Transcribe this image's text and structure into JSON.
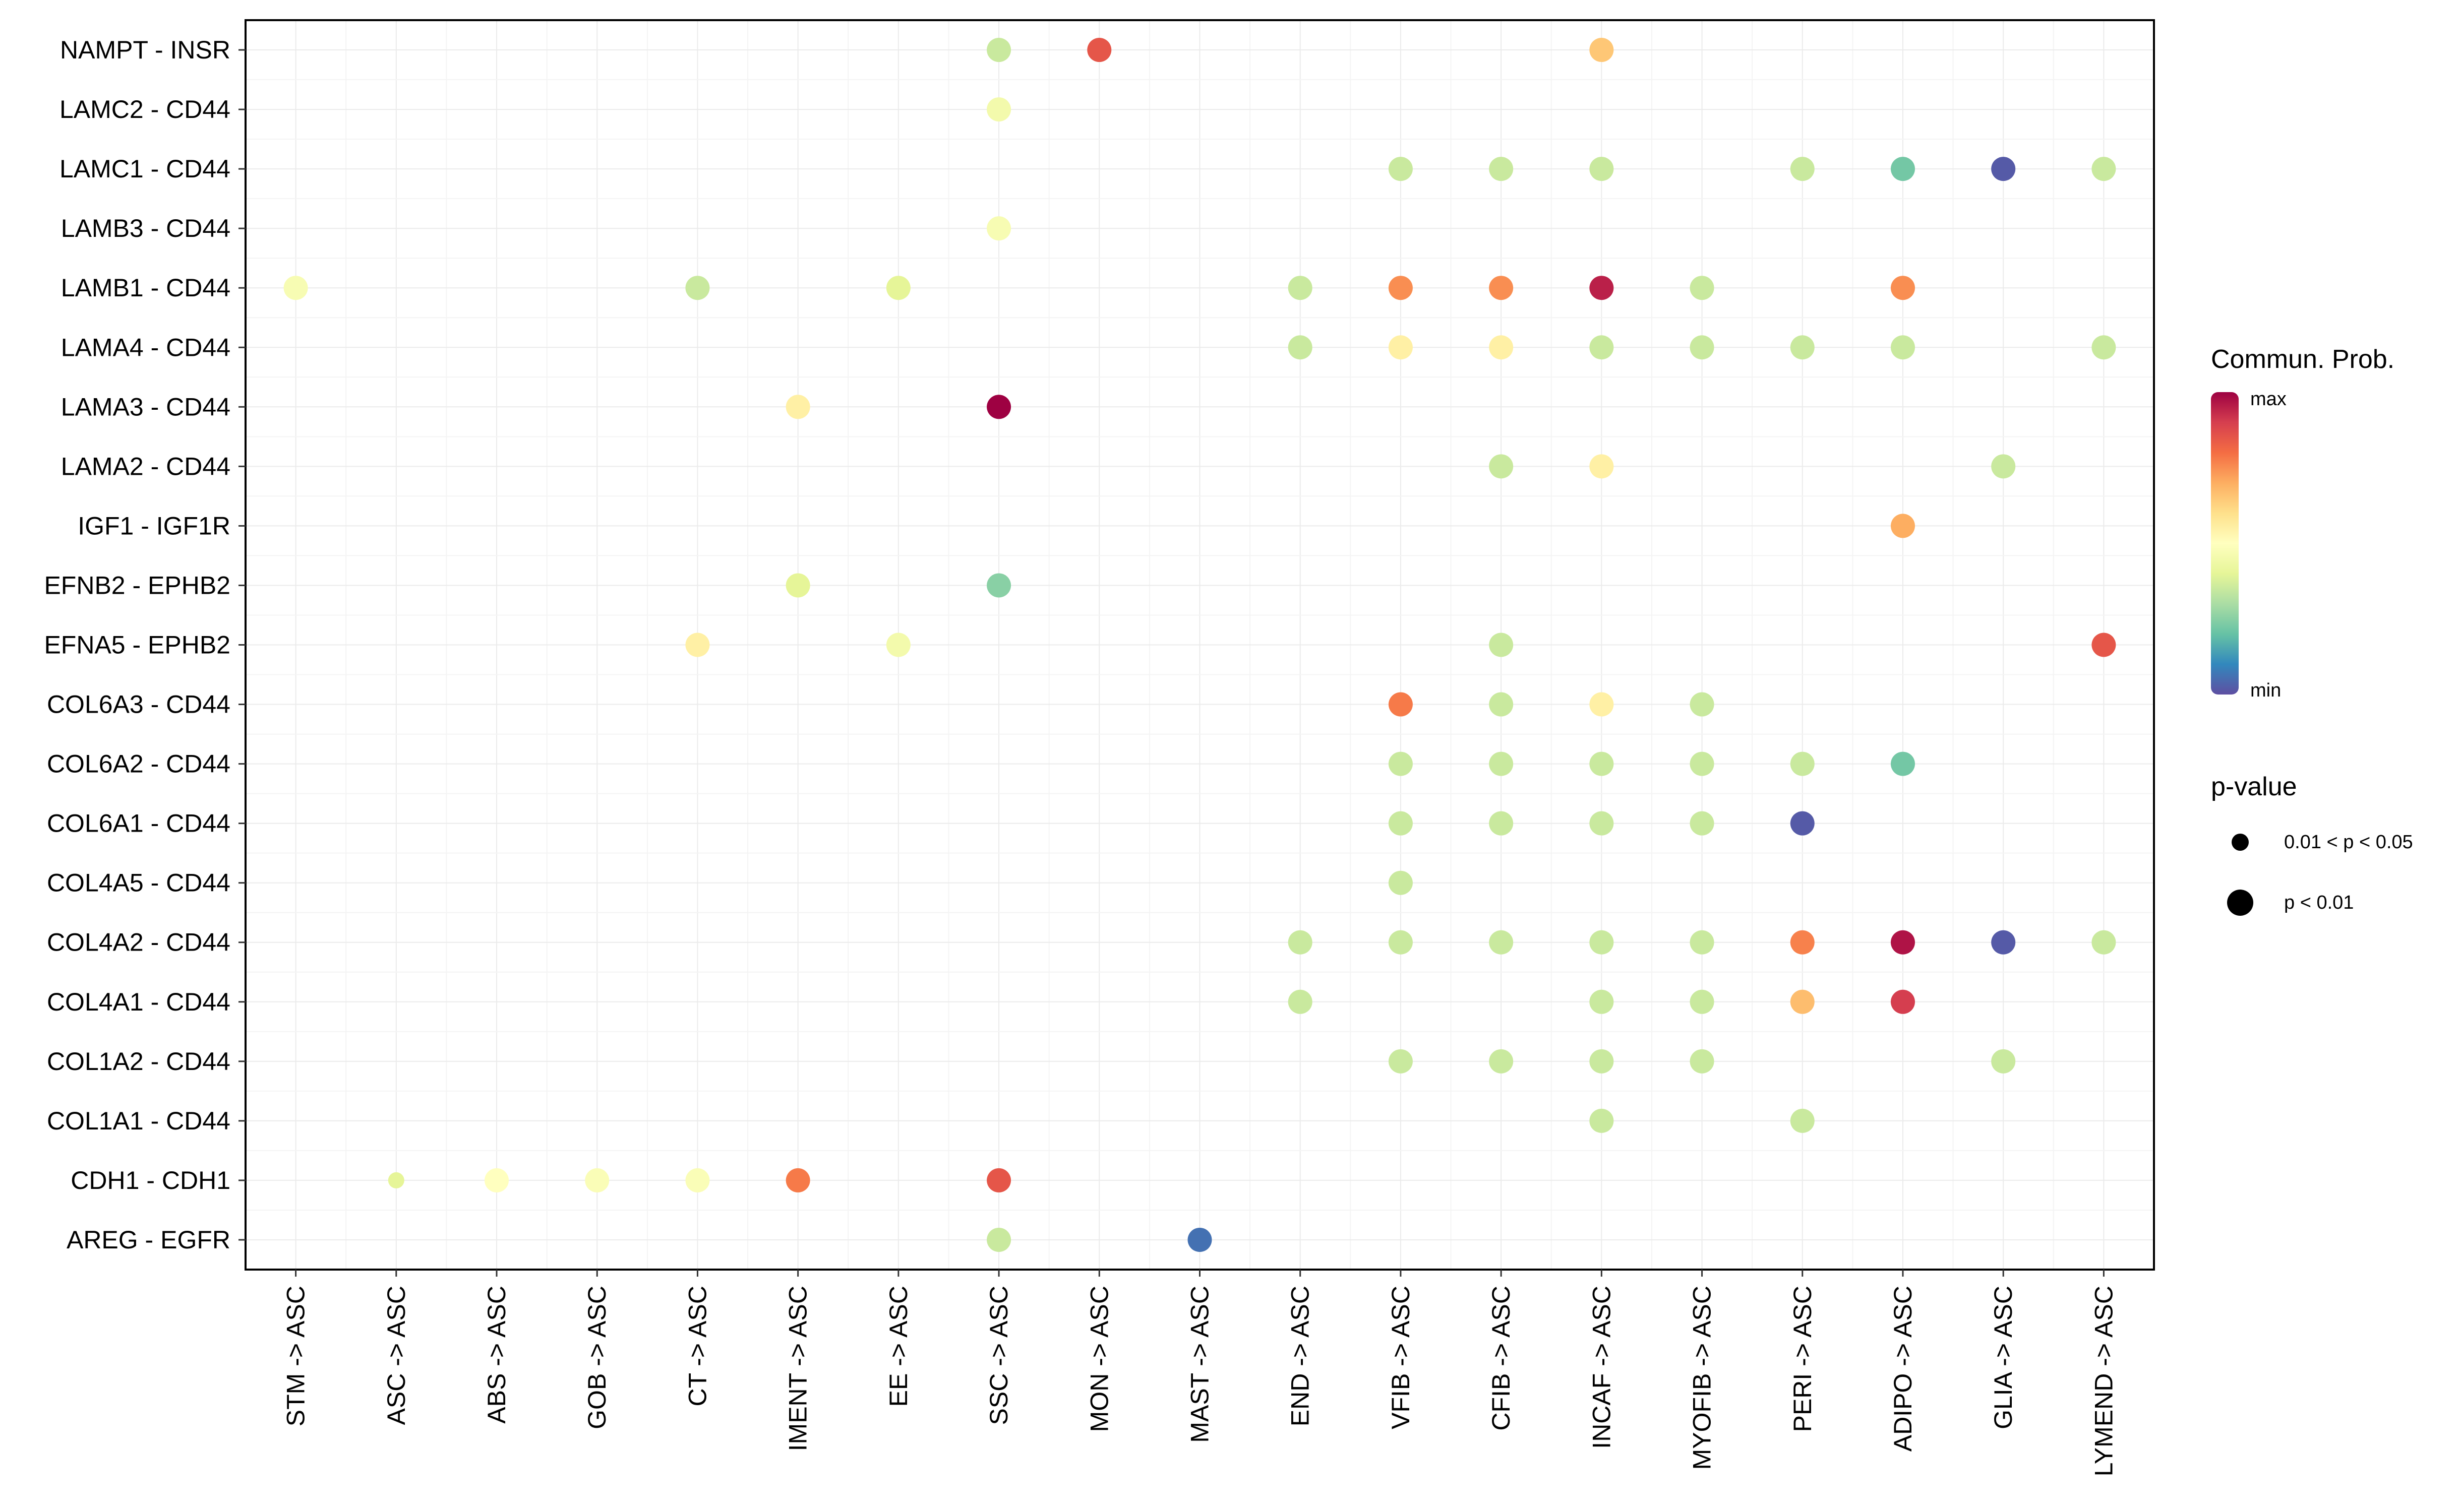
{
  "chart_data": {
    "type": "dot-plot",
    "title": "",
    "xlabel": "",
    "ylabel": "",
    "grid": true,
    "x_categories": [
      "STM -> ASC",
      "ASC -> ASC",
      "ABS -> ASC",
      "GOB -> ASC",
      "CT -> ASC",
      "IMENT -> ASC",
      "EE -> ASC",
      "SSC -> ASC",
      "MON -> ASC",
      "MAST -> ASC",
      "END -> ASC",
      "VFIB -> ASC",
      "CFIB -> ASC",
      "INCAF -> ASC",
      "MYOFIB -> ASC",
      "PERI -> ASC",
      "ADIPO -> ASC",
      "GLIA -> ASC",
      "LYMEND -> ASC"
    ],
    "y_categories": [
      "AREG - EGFR",
      "CDH1 - CDH1",
      "COL1A1 - CD44",
      "COL1A2 - CD44",
      "COL4A1 - CD44",
      "COL4A2 - CD44",
      "COL4A5 - CD44",
      "COL6A1 - CD44",
      "COL6A2 - CD44",
      "COL6A3 - CD44",
      "EFNA5 - EPHB2",
      "EFNB2 - EPHB2",
      "IGF1 - IGF1R",
      "LAMA2 - CD44",
      "LAMA3 - CD44",
      "LAMA4 - CD44",
      "LAMB1 - CD44",
      "LAMB3 - CD44",
      "LAMC1 - CD44",
      "LAMC2 - CD44",
      "NAMPT - INSR"
    ],
    "points": [
      {
        "x": "SSC -> ASC",
        "y": "NAMPT - INSR",
        "prob": 0.35,
        "p_class": "p < 0.01"
      },
      {
        "x": "MON -> ASC",
        "y": "NAMPT - INSR",
        "prob": 0.85,
        "p_class": "p < 0.01"
      },
      {
        "x": "INCAF -> ASC",
        "y": "NAMPT - INSR",
        "prob": 0.65,
        "p_class": "p < 0.01"
      },
      {
        "x": "SSC -> ASC",
        "y": "LAMC2 - CD44",
        "prob": 0.45,
        "p_class": "p < 0.01"
      },
      {
        "x": "VFIB -> ASC",
        "y": "LAMC1 - CD44",
        "prob": 0.35,
        "p_class": "p < 0.01"
      },
      {
        "x": "CFIB -> ASC",
        "y": "LAMC1 - CD44",
        "prob": 0.35,
        "p_class": "p < 0.01"
      },
      {
        "x": "INCAF -> ASC",
        "y": "LAMC1 - CD44",
        "prob": 0.35,
        "p_class": "p < 0.01"
      },
      {
        "x": "PERI -> ASC",
        "y": "LAMC1 - CD44",
        "prob": 0.35,
        "p_class": "p < 0.01"
      },
      {
        "x": "ADIPO -> ASC",
        "y": "LAMC1 - CD44",
        "prob": 0.22,
        "p_class": "p < 0.01"
      },
      {
        "x": "GLIA -> ASC",
        "y": "LAMC1 - CD44",
        "prob": 0.02,
        "p_class": "p < 0.01"
      },
      {
        "x": "LYMEND -> ASC",
        "y": "LAMC1 - CD44",
        "prob": 0.35,
        "p_class": "p < 0.01"
      },
      {
        "x": "SSC -> ASC",
        "y": "LAMB3 - CD44",
        "prob": 0.47,
        "p_class": "p < 0.01"
      },
      {
        "x": "STM -> ASC",
        "y": "LAMB1 - CD44",
        "prob": 0.47,
        "p_class": "p < 0.01"
      },
      {
        "x": "CT -> ASC",
        "y": "LAMB1 - CD44",
        "prob": 0.35,
        "p_class": "p < 0.01"
      },
      {
        "x": "EE -> ASC",
        "y": "LAMB1 - CD44",
        "prob": 0.4,
        "p_class": "p < 0.01"
      },
      {
        "x": "END -> ASC",
        "y": "LAMB1 - CD44",
        "prob": 0.35,
        "p_class": "p < 0.01"
      },
      {
        "x": "VFIB -> ASC",
        "y": "LAMB1 - CD44",
        "prob": 0.75,
        "p_class": "p < 0.01"
      },
      {
        "x": "CFIB -> ASC",
        "y": "LAMB1 - CD44",
        "prob": 0.75,
        "p_class": "p < 0.01"
      },
      {
        "x": "INCAF -> ASC",
        "y": "LAMB1 - CD44",
        "prob": 0.95,
        "p_class": "p < 0.01"
      },
      {
        "x": "MYOFIB -> ASC",
        "y": "LAMB1 - CD44",
        "prob": 0.35,
        "p_class": "p < 0.01"
      },
      {
        "x": "ADIPO -> ASC",
        "y": "LAMB1 - CD44",
        "prob": 0.75,
        "p_class": "p < 0.01"
      },
      {
        "x": "END -> ASC",
        "y": "LAMA4 - CD44",
        "prob": 0.35,
        "p_class": "p < 0.01"
      },
      {
        "x": "VFIB -> ASC",
        "y": "LAMA4 - CD44",
        "prob": 0.55,
        "p_class": "p < 0.01"
      },
      {
        "x": "CFIB -> ASC",
        "y": "LAMA4 - CD44",
        "prob": 0.55,
        "p_class": "p < 0.01"
      },
      {
        "x": "INCAF -> ASC",
        "y": "LAMA4 - CD44",
        "prob": 0.35,
        "p_class": "p < 0.01"
      },
      {
        "x": "MYOFIB -> ASC",
        "y": "LAMA4 - CD44",
        "prob": 0.35,
        "p_class": "p < 0.01"
      },
      {
        "x": "PERI -> ASC",
        "y": "LAMA4 - CD44",
        "prob": 0.35,
        "p_class": "p < 0.01"
      },
      {
        "x": "ADIPO -> ASC",
        "y": "LAMA4 - CD44",
        "prob": 0.35,
        "p_class": "p < 0.01"
      },
      {
        "x": "LYMEND -> ASC",
        "y": "LAMA4 - CD44",
        "prob": 0.35,
        "p_class": "p < 0.01"
      },
      {
        "x": "IMENT -> ASC",
        "y": "LAMA3 - CD44",
        "prob": 0.55,
        "p_class": "p < 0.01"
      },
      {
        "x": "SSC -> ASC",
        "y": "LAMA3 - CD44",
        "prob": 1.0,
        "p_class": "p < 0.01"
      },
      {
        "x": "CFIB -> ASC",
        "y": "LAMA2 - CD44",
        "prob": 0.35,
        "p_class": "p < 0.01"
      },
      {
        "x": "INCAF -> ASC",
        "y": "LAMA2 - CD44",
        "prob": 0.55,
        "p_class": "p < 0.01"
      },
      {
        "x": "GLIA -> ASC",
        "y": "LAMA2 - CD44",
        "prob": 0.35,
        "p_class": "p < 0.01"
      },
      {
        "x": "ADIPO -> ASC",
        "y": "IGF1 - IGF1R",
        "prob": 0.7,
        "p_class": "p < 0.01"
      },
      {
        "x": "IMENT -> ASC",
        "y": "EFNB2 - EPHB2",
        "prob": 0.4,
        "p_class": "p < 0.01"
      },
      {
        "x": "SSC -> ASC",
        "y": "EFNB2 - EPHB2",
        "prob": 0.25,
        "p_class": "p < 0.01"
      },
      {
        "x": "CT -> ASC",
        "y": "EFNA5 - EPHB2",
        "prob": 0.55,
        "p_class": "p < 0.01"
      },
      {
        "x": "EE -> ASC",
        "y": "EFNA5 - EPHB2",
        "prob": 0.45,
        "p_class": "p < 0.01"
      },
      {
        "x": "CFIB -> ASC",
        "y": "EFNA5 - EPHB2",
        "prob": 0.35,
        "p_class": "p < 0.01"
      },
      {
        "x": "LYMEND -> ASC",
        "y": "EFNA5 - EPHB2",
        "prob": 0.85,
        "p_class": "p < 0.01"
      },
      {
        "x": "VFIB -> ASC",
        "y": "COL6A3 - CD44",
        "prob": 0.78,
        "p_class": "p < 0.01"
      },
      {
        "x": "CFIB -> ASC",
        "y": "COL6A3 - CD44",
        "prob": 0.35,
        "p_class": "p < 0.01"
      },
      {
        "x": "INCAF -> ASC",
        "y": "COL6A3 - CD44",
        "prob": 0.55,
        "p_class": "p < 0.01"
      },
      {
        "x": "MYOFIB -> ASC",
        "y": "COL6A3 - CD44",
        "prob": 0.35,
        "p_class": "p < 0.01"
      },
      {
        "x": "VFIB -> ASC",
        "y": "COL6A2 - CD44",
        "prob": 0.35,
        "p_class": "p < 0.01"
      },
      {
        "x": "CFIB -> ASC",
        "y": "COL6A2 - CD44",
        "prob": 0.35,
        "p_class": "p < 0.01"
      },
      {
        "x": "INCAF -> ASC",
        "y": "COL6A2 - CD44",
        "prob": 0.35,
        "p_class": "p < 0.01"
      },
      {
        "x": "MYOFIB -> ASC",
        "y": "COL6A2 - CD44",
        "prob": 0.35,
        "p_class": "p < 0.01"
      },
      {
        "x": "PERI -> ASC",
        "y": "COL6A2 - CD44",
        "prob": 0.35,
        "p_class": "p < 0.01"
      },
      {
        "x": "ADIPO -> ASC",
        "y": "COL6A2 - CD44",
        "prob": 0.22,
        "p_class": "p < 0.01"
      },
      {
        "x": "VFIB -> ASC",
        "y": "COL6A1 - CD44",
        "prob": 0.35,
        "p_class": "p < 0.01"
      },
      {
        "x": "CFIB -> ASC",
        "y": "COL6A1 - CD44",
        "prob": 0.35,
        "p_class": "p < 0.01"
      },
      {
        "x": "INCAF -> ASC",
        "y": "COL6A1 - CD44",
        "prob": 0.35,
        "p_class": "p < 0.01"
      },
      {
        "x": "MYOFIB -> ASC",
        "y": "COL6A1 - CD44",
        "prob": 0.35,
        "p_class": "p < 0.01"
      },
      {
        "x": "PERI -> ASC",
        "y": "COL6A1 - CD44",
        "prob": 0.02,
        "p_class": "p < 0.01"
      },
      {
        "x": "VFIB -> ASC",
        "y": "COL4A5 - CD44",
        "prob": 0.35,
        "p_class": "p < 0.01"
      },
      {
        "x": "END -> ASC",
        "y": "COL4A2 - CD44",
        "prob": 0.35,
        "p_class": "p < 0.01"
      },
      {
        "x": "VFIB -> ASC",
        "y": "COL4A2 - CD44",
        "prob": 0.35,
        "p_class": "p < 0.01"
      },
      {
        "x": "CFIB -> ASC",
        "y": "COL4A2 - CD44",
        "prob": 0.35,
        "p_class": "p < 0.01"
      },
      {
        "x": "INCAF -> ASC",
        "y": "COL4A2 - CD44",
        "prob": 0.35,
        "p_class": "p < 0.01"
      },
      {
        "x": "MYOFIB -> ASC",
        "y": "COL4A2 - CD44",
        "prob": 0.35,
        "p_class": "p < 0.01"
      },
      {
        "x": "PERI -> ASC",
        "y": "COL4A2 - CD44",
        "prob": 0.77,
        "p_class": "p < 0.01"
      },
      {
        "x": "ADIPO -> ASC",
        "y": "COL4A2 - CD44",
        "prob": 0.97,
        "p_class": "p < 0.01"
      },
      {
        "x": "GLIA -> ASC",
        "y": "COL4A2 - CD44",
        "prob": 0.02,
        "p_class": "p < 0.01"
      },
      {
        "x": "LYMEND -> ASC",
        "y": "COL4A2 - CD44",
        "prob": 0.35,
        "p_class": "p < 0.01"
      },
      {
        "x": "END -> ASC",
        "y": "COL4A1 - CD44",
        "prob": 0.35,
        "p_class": "p < 0.01"
      },
      {
        "x": "INCAF -> ASC",
        "y": "COL4A1 - CD44",
        "prob": 0.35,
        "p_class": "p < 0.01"
      },
      {
        "x": "MYOFIB -> ASC",
        "y": "COL4A1 - CD44",
        "prob": 0.35,
        "p_class": "p < 0.01"
      },
      {
        "x": "PERI -> ASC",
        "y": "COL4A1 - CD44",
        "prob": 0.67,
        "p_class": "p < 0.01"
      },
      {
        "x": "ADIPO -> ASC",
        "y": "COL4A1 - CD44",
        "prob": 0.9,
        "p_class": "p < 0.01"
      },
      {
        "x": "VFIB -> ASC",
        "y": "COL1A2 - CD44",
        "prob": 0.35,
        "p_class": "p < 0.01"
      },
      {
        "x": "CFIB -> ASC",
        "y": "COL1A2 - CD44",
        "prob": 0.35,
        "p_class": "p < 0.01"
      },
      {
        "x": "INCAF -> ASC",
        "y": "COL1A2 - CD44",
        "prob": 0.35,
        "p_class": "p < 0.01"
      },
      {
        "x": "MYOFIB -> ASC",
        "y": "COL1A2 - CD44",
        "prob": 0.35,
        "p_class": "p < 0.01"
      },
      {
        "x": "GLIA -> ASC",
        "y": "COL1A2 - CD44",
        "prob": 0.35,
        "p_class": "p < 0.01"
      },
      {
        "x": "INCAF -> ASC",
        "y": "COL1A1 - CD44",
        "prob": 0.35,
        "p_class": "p < 0.01"
      },
      {
        "x": "PERI -> ASC",
        "y": "COL1A1 - CD44",
        "prob": 0.35,
        "p_class": "p < 0.01"
      },
      {
        "x": "ASC -> ASC",
        "y": "CDH1 - CDH1",
        "prob": 0.4,
        "p_class": "0.01 < p < 0.05"
      },
      {
        "x": "ABS -> ASC",
        "y": "CDH1 - CDH1",
        "prob": 0.5,
        "p_class": "p < 0.01"
      },
      {
        "x": "GOB -> ASC",
        "y": "CDH1 - CDH1",
        "prob": 0.48,
        "p_class": "p < 0.01"
      },
      {
        "x": "CT -> ASC",
        "y": "CDH1 - CDH1",
        "prob": 0.48,
        "p_class": "p < 0.01"
      },
      {
        "x": "IMENT -> ASC",
        "y": "CDH1 - CDH1",
        "prob": 0.78,
        "p_class": "p < 0.01"
      },
      {
        "x": "SSC -> ASC",
        "y": "CDH1 - CDH1",
        "prob": 0.85,
        "p_class": "p < 0.01"
      },
      {
        "x": "SSC -> ASC",
        "y": "AREG - EGFR",
        "prob": 0.35,
        "p_class": "p < 0.01"
      },
      {
        "x": "MAST -> ASC",
        "y": "AREG - EGFR",
        "prob": 0.06,
        "p_class": "p < 0.01"
      }
    ],
    "color_scale": {
      "name": "Spectral",
      "stops": [
        "#5E4FA2",
        "#3288BD",
        "#66C2A5",
        "#ABDDA4",
        "#E6F598",
        "#FFFFBF",
        "#FEE08B",
        "#FDAE61",
        "#F46D43",
        "#D53E4F",
        "#9E0142"
      ]
    },
    "legend": {
      "color_title": "Commun. Prob.",
      "color_max_label": "max",
      "color_min_label": "min",
      "size_title": "p-value",
      "size_items": [
        "0.01 < p < 0.05",
        "p < 0.01"
      ]
    }
  }
}
